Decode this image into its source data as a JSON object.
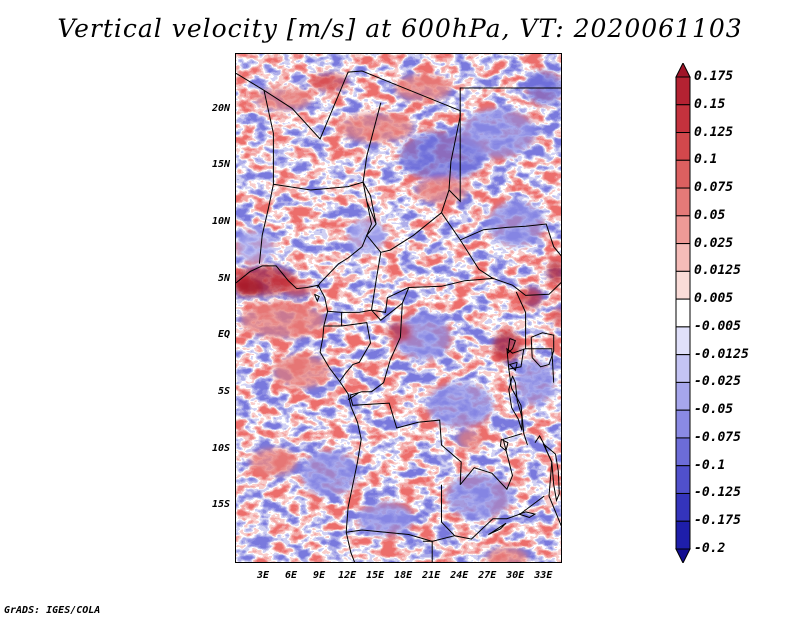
{
  "title": "Vertical velocity [m/s] at 600hPa, VT: 2020061103",
  "credit": "GrADS: IGES/COLA",
  "map": {
    "lon_range": [
      0,
      35
    ],
    "lat_range": [
      -20,
      25
    ],
    "lat_labels": [
      {
        "lat": 20,
        "text": "20N"
      },
      {
        "lat": 15,
        "text": "15N"
      },
      {
        "lat": 10,
        "text": "10N"
      },
      {
        "lat": 5,
        "text": "5N"
      },
      {
        "lat": 0,
        "text": "EQ"
      },
      {
        "lat": -5,
        "text": "5S"
      },
      {
        "lat": -10,
        "text": "10S"
      },
      {
        "lat": -15,
        "text": "15S"
      }
    ],
    "lon_labels": [
      {
        "lon": 3,
        "text": "3E"
      },
      {
        "lon": 6,
        "text": "6E"
      },
      {
        "lon": 9,
        "text": "9E"
      },
      {
        "lon": 12,
        "text": "12E"
      },
      {
        "lon": 15,
        "text": "15E"
      },
      {
        "lon": 18,
        "text": "18E"
      },
      {
        "lon": 21,
        "text": "21E"
      },
      {
        "lon": 24,
        "text": "24E"
      },
      {
        "lon": 27,
        "text": "27E"
      },
      {
        "lon": 30,
        "text": "30E"
      },
      {
        "lon": 33,
        "text": "33E"
      }
    ],
    "borders": [
      [
        [
          0,
          23.3
        ],
        [
          3,
          21.8
        ],
        [
          6,
          20.2
        ],
        [
          9,
          17.5
        ],
        [
          12,
          23.4
        ],
        [
          13.5,
          23.5
        ],
        [
          15,
          23.0
        ],
        [
          24,
          20.0
        ],
        [
          24,
          19.5
        ]
      ],
      [
        [
          3,
          21.8
        ],
        [
          4,
          18
        ],
        [
          4,
          13.5
        ],
        [
          3.5,
          11.5
        ],
        [
          2.8,
          9
        ],
        [
          2.5,
          6.5
        ]
      ],
      [
        [
          4,
          13.5
        ],
        [
          8,
          13
        ],
        [
          12,
          13.3
        ],
        [
          13.6,
          13.7
        ]
      ],
      [
        [
          13.6,
          13.7
        ],
        [
          14,
          12
        ],
        [
          14.5,
          10
        ],
        [
          13.5,
          8
        ],
        [
          12,
          7
        ],
        [
          11,
          6.5
        ],
        [
          9,
          4.8
        ],
        [
          8.7,
          4.4
        ]
      ],
      [
        [
          15.5,
          20.7
        ],
        [
          14,
          16
        ],
        [
          13.6,
          13.7
        ],
        [
          14.4,
          12.5
        ],
        [
          15,
          10
        ],
        [
          14,
          9
        ],
        [
          15.5,
          7.5
        ],
        [
          16.5,
          7.7
        ],
        [
          19,
          9
        ],
        [
          22,
          11
        ],
        [
          22.8,
          13
        ],
        [
          23,
          15.5
        ],
        [
          24,
          19.5
        ]
      ],
      [
        [
          14,
          12
        ],
        [
          15,
          10
        ]
      ],
      [
        [
          15.5,
          7.5
        ],
        [
          15,
          5
        ],
        [
          14.5,
          2.4
        ],
        [
          16,
          2.2
        ],
        [
          16.2,
          3.5
        ],
        [
          18.5,
          4.4
        ],
        [
          22,
          4.5
        ],
        [
          24.5,
          5
        ],
        [
          27.5,
          5.2
        ],
        [
          29.6,
          4.6
        ],
        [
          31,
          3.7
        ],
        [
          33.5,
          3.8
        ],
        [
          35,
          5
        ]
      ],
      [
        [
          22,
          11
        ],
        [
          24,
          8.6
        ],
        [
          26,
          6
        ],
        [
          27.5,
          5.2
        ]
      ],
      [
        [
          24,
          19.5
        ],
        [
          24,
          12
        ],
        [
          22.8,
          13
        ]
      ],
      [
        [
          24,
          8.6
        ],
        [
          26.5,
          9.5
        ],
        [
          29,
          9.7
        ],
        [
          31,
          9.8
        ],
        [
          33.2,
          10
        ],
        [
          34,
          8
        ],
        [
          35,
          7
        ]
      ],
      [
        [
          24,
          19.5
        ],
        [
          24,
          22
        ],
        [
          35,
          22
        ]
      ],
      [
        [
          9.8,
          2.3
        ],
        [
          11.3,
          2.2
        ],
        [
          11.3,
          1
        ],
        [
          9.4,
          1
        ]
      ],
      [
        [
          11.3,
          2.2
        ],
        [
          13.2,
          2.2
        ],
        [
          14.5,
          2.4
        ]
      ],
      [
        [
          11.3,
          1
        ],
        [
          14,
          1.3
        ],
        [
          14.4,
          -0.5
        ],
        [
          13.2,
          -2.2
        ],
        [
          12.5,
          -2.4
        ],
        [
          11.7,
          -3.2
        ],
        [
          11.1,
          -3.9
        ]
      ],
      [
        [
          14.5,
          2.4
        ],
        [
          15.5,
          1.5
        ],
        [
          17.8,
          3
        ],
        [
          18.5,
          4.4
        ]
      ],
      [
        [
          17.8,
          3
        ],
        [
          17.6,
          0
        ],
        [
          16.5,
          -2
        ],
        [
          15.8,
          -4
        ],
        [
          14.5,
          -4.8
        ],
        [
          13.5,
          -4.8
        ],
        [
          12.2,
          -5.1
        ]
      ],
      [
        [
          12.2,
          -5.1
        ],
        [
          12.5,
          -6
        ],
        [
          16.4,
          -5.8
        ],
        [
          17.2,
          -8
        ],
        [
          19.5,
          -7.5
        ],
        [
          21.8,
          -7.3
        ],
        [
          22,
          -9.5
        ],
        [
          24.1,
          -11
        ],
        [
          24,
          -13
        ]
      ],
      [
        [
          12,
          -5.5
        ],
        [
          13.1,
          -4.9
        ]
      ],
      [
        [
          22,
          -13
        ],
        [
          22,
          -16.3
        ],
        [
          23.4,
          -17.5
        ]
      ],
      [
        [
          11.8,
          -17.2
        ],
        [
          13.5,
          -17
        ],
        [
          18.5,
          -17.4
        ],
        [
          21,
          -18
        ],
        [
          23.4,
          -17.5
        ],
        [
          25.2,
          -17.8
        ],
        [
          27.5,
          -16
        ],
        [
          29,
          -16
        ],
        [
          30.4,
          -15.6
        ],
        [
          33,
          -14
        ]
      ],
      [
        [
          20,
          -18
        ],
        [
          21,
          -18
        ],
        [
          21,
          -22
        ]
      ],
      [
        [
          30,
          4
        ],
        [
          31,
          2.2
        ],
        [
          31,
          -1
        ],
        [
          29.6,
          -1.4
        ],
        [
          29,
          -1
        ],
        [
          29.2,
          -2.8
        ],
        [
          30.5,
          -2.6
        ],
        [
          30.8,
          -1
        ]
      ],
      [
        [
          31,
          -1
        ],
        [
          33.8,
          -1
        ],
        [
          34,
          -4
        ]
      ],
      [
        [
          29.2,
          -2.8
        ],
        [
          29.5,
          -4.5
        ],
        [
          30.5,
          -6
        ],
        [
          30.8,
          -8.5
        ],
        [
          31.2,
          -9.5
        ]
      ],
      [
        [
          24,
          -13
        ],
        [
          25.5,
          -11.5
        ],
        [
          27.4,
          -12
        ],
        [
          29,
          -13.4
        ],
        [
          29.6,
          -12.2
        ],
        [
          28.6,
          -9
        ],
        [
          30.6,
          -8.5
        ]
      ],
      [
        [
          32.9,
          -9.4
        ],
        [
          33.8,
          -11
        ],
        [
          33.5,
          -14
        ],
        [
          35,
          -17
        ]
      ],
      [
        [
          33.2,
          -9.8
        ],
        [
          32.5,
          -8.7
        ],
        [
          32,
          -9.3
        ]
      ]
    ],
    "coastlines": [
      [
        [
          0,
          4.8
        ],
        [
          1.5,
          5.8
        ],
        [
          2.8,
          6.3
        ],
        [
          4.3,
          6.3
        ],
        [
          5.6,
          5.0
        ],
        [
          6.5,
          4.3
        ],
        [
          7.6,
          4.4
        ],
        [
          8.8,
          4.6
        ],
        [
          9.5,
          3.5
        ],
        [
          9.8,
          2.3
        ],
        [
          9.4,
          1.0
        ],
        [
          9.3,
          0.0
        ],
        [
          9.0,
          -1.3
        ],
        [
          10.0,
          -2.7
        ],
        [
          11.1,
          -3.9
        ],
        [
          12.0,
          -5.0
        ],
        [
          12.3,
          -6.1
        ],
        [
          13.0,
          -7.5
        ],
        [
          13.4,
          -9.0
        ],
        [
          13.0,
          -11.0
        ],
        [
          12.5,
          -13.0
        ],
        [
          12.0,
          -15.0
        ],
        [
          11.8,
          -17.2
        ],
        [
          12.3,
          -19.0
        ],
        [
          13.0,
          -20.5
        ]
      ],
      [
        [
          29.6,
          -3.4
        ],
        [
          29.2,
          -4.6
        ],
        [
          29.5,
          -6.2
        ],
        [
          30.2,
          -7.2
        ],
        [
          30.6,
          -8.2
        ],
        [
          30.6,
          -7.0
        ],
        [
          30.1,
          -5.6
        ],
        [
          29.9,
          -4.0
        ],
        [
          29.6,
          -3.4
        ]
      ],
      [
        [
          32.9,
          -9.4
        ],
        [
          34.2,
          -10.3
        ],
        [
          34.5,
          -11.8
        ],
        [
          34.6,
          -13.8
        ],
        [
          34.3,
          -14.4
        ],
        [
          34.0,
          -13.0
        ],
        [
          33.8,
          -11.0
        ],
        [
          32.9,
          -9.4
        ]
      ],
      [
        [
          31.6,
          0.0
        ],
        [
          32.8,
          0.4
        ],
        [
          34.0,
          0.2
        ],
        [
          34.0,
          -1.2
        ],
        [
          33.5,
          -2.4
        ],
        [
          32.6,
          -2.6
        ],
        [
          31.7,
          -1.8
        ],
        [
          31.6,
          0.0
        ]
      ],
      [
        [
          29.3,
          -0.1
        ],
        [
          29.9,
          -0.3
        ],
        [
          29.6,
          -1.0
        ],
        [
          29.1,
          -1.4
        ],
        [
          29.3,
          -0.1
        ]
      ],
      [
        [
          30.1,
          -2.2
        ],
        [
          29.9,
          -2.9
        ],
        [
          29.3,
          -2.4
        ],
        [
          30.1,
          -2.2
        ]
      ],
      [
        [
          28.4,
          -9.0
        ],
        [
          29.1,
          -9.3
        ],
        [
          28.9,
          -10.0
        ],
        [
          28.3,
          -9.6
        ],
        [
          28.4,
          -9.0
        ]
      ],
      [
        [
          8.4,
          3.8
        ],
        [
          8.9,
          3.6
        ],
        [
          8.7,
          3.2
        ],
        [
          8.4,
          3.8
        ]
      ],
      [
        [
          30.3,
          -15.6
        ],
        [
          31.4,
          -15.9
        ],
        [
          32.0,
          -15.6
        ],
        [
          31.0,
          -15.4
        ],
        [
          30.3,
          -15.6
        ]
      ],
      [
        [
          27.0,
          -17.4
        ],
        [
          28.3,
          -16.9
        ],
        [
          28.9,
          -16.4
        ],
        [
          27.4,
          -17.2
        ],
        [
          27.0,
          -17.4
        ]
      ]
    ],
    "red_blobs": [
      {
        "lon": 3,
        "lat": 5,
        "rx": 3.4,
        "ry": 1.3,
        "v": 0.16
      },
      {
        "lon": 1.3,
        "lat": 4.4,
        "rx": 1.6,
        "ry": 0.8,
        "v": 0.19
      },
      {
        "lon": 6.6,
        "lat": 4.2,
        "rx": 1.5,
        "ry": 0.6,
        "v": 0.12
      },
      {
        "lon": 17.5,
        "lat": 0.5,
        "rx": 1.3,
        "ry": 0.9,
        "v": 0.14
      },
      {
        "lon": 29,
        "lat": -0.8,
        "rx": 1.5,
        "ry": 1.4,
        "v": 0.15
      },
      {
        "lon": 31.6,
        "lat": 3.5,
        "rx": 1.2,
        "ry": 0.9,
        "v": 0.13
      },
      {
        "lon": 34.2,
        "lat": 5.8,
        "rx": 0.9,
        "ry": 1.0,
        "v": 0.16
      },
      {
        "lon": 34.5,
        "lat": 1.8,
        "rx": 0.6,
        "ry": 0.8,
        "v": 0.1
      },
      {
        "lon": 15,
        "lat": 18.5,
        "rx": 4.0,
        "ry": 1.3,
        "v": 0.07
      },
      {
        "lon": 10,
        "lat": 22.5,
        "rx": 2.0,
        "ry": 0.8,
        "v": 0.11
      },
      {
        "lon": 20,
        "lat": 22,
        "rx": 3.0,
        "ry": 1.2,
        "v": 0.07
      },
      {
        "lon": 5,
        "lat": 1.5,
        "rx": 4.5,
        "ry": 1.6,
        "v": 0.06
      },
      {
        "lon": 7,
        "lat": -3,
        "rx": 3.0,
        "ry": 1.5,
        "v": 0.05
      },
      {
        "lon": 29,
        "lat": -19.5,
        "rx": 2.2,
        "ry": 1.0,
        "v": 0.07
      },
      {
        "lon": 25,
        "lat": -9,
        "rx": 1.3,
        "ry": 0.9,
        "v": 0.06
      },
      {
        "lon": 4,
        "lat": -11,
        "rx": 2.5,
        "ry": 1.2,
        "v": 0.05
      },
      {
        "lon": 22,
        "lat": 13,
        "rx": 2.8,
        "ry": 1.2,
        "v": 0.06
      },
      {
        "lon": 5,
        "lat": 21,
        "rx": 3.0,
        "ry": 1.0,
        "v": 0.06
      }
    ],
    "blue_blobs": [
      {
        "lon": 22,
        "lat": 16,
        "rx": 4.5,
        "ry": 2.2,
        "v": -0.09
      },
      {
        "lon": 28,
        "lat": 18,
        "rx": 4.0,
        "ry": 2.2,
        "v": -0.07
      },
      {
        "lon": 20,
        "lat": 0,
        "rx": 3.0,
        "ry": 2.0,
        "v": -0.07
      },
      {
        "lon": 24,
        "lat": -6,
        "rx": 3.5,
        "ry": 2.0,
        "v": -0.06
      },
      {
        "lon": 10,
        "lat": -12,
        "rx": 3.0,
        "ry": 2.0,
        "v": -0.06
      },
      {
        "lon": 26,
        "lat": -14,
        "rx": 3.5,
        "ry": 2.0,
        "v": -0.07
      },
      {
        "lon": 16,
        "lat": -16,
        "rx": 3.0,
        "ry": 1.5,
        "v": -0.06
      },
      {
        "lon": 30,
        "lat": 10,
        "rx": 3.0,
        "ry": 2.0,
        "v": -0.07
      },
      {
        "lon": 33,
        "lat": 22,
        "rx": 2.0,
        "ry": 1.5,
        "v": -0.09
      },
      {
        "lon": 14,
        "lat": 9,
        "rx": 2.0,
        "ry": 1.5,
        "v": -0.05
      },
      {
        "lon": 32,
        "lat": -4,
        "rx": 2.0,
        "ry": 2.0,
        "v": -0.07
      },
      {
        "lon": 2,
        "lat": 8,
        "rx": 2.0,
        "ry": 1.5,
        "v": -0.05
      }
    ]
  },
  "colorbar": {
    "levels": [
      "0.175",
      "0.15",
      "0.125",
      "0.1",
      "0.075",
      "0.05",
      "0.025",
      "0.0125",
      "0.005",
      "-0.005",
      "-0.0125",
      "-0.025",
      "-0.05",
      "-0.075",
      "-0.1",
      "-0.125",
      "-0.175",
      "-0.2"
    ],
    "colors": [
      "#a01428",
      "#b42232",
      "#c4323d",
      "#d2484c",
      "#dc6060",
      "#e47a78",
      "#ee9a96",
      "#f5bcb8",
      "#fadcd8",
      "#ffffff",
      "#e0e0fa",
      "#c4c4f4",
      "#a6a6ec",
      "#8a8ae4",
      "#6c6cd8",
      "#5050cc",
      "#3434bc",
      "#1e1eaa",
      "#120c90"
    ]
  }
}
